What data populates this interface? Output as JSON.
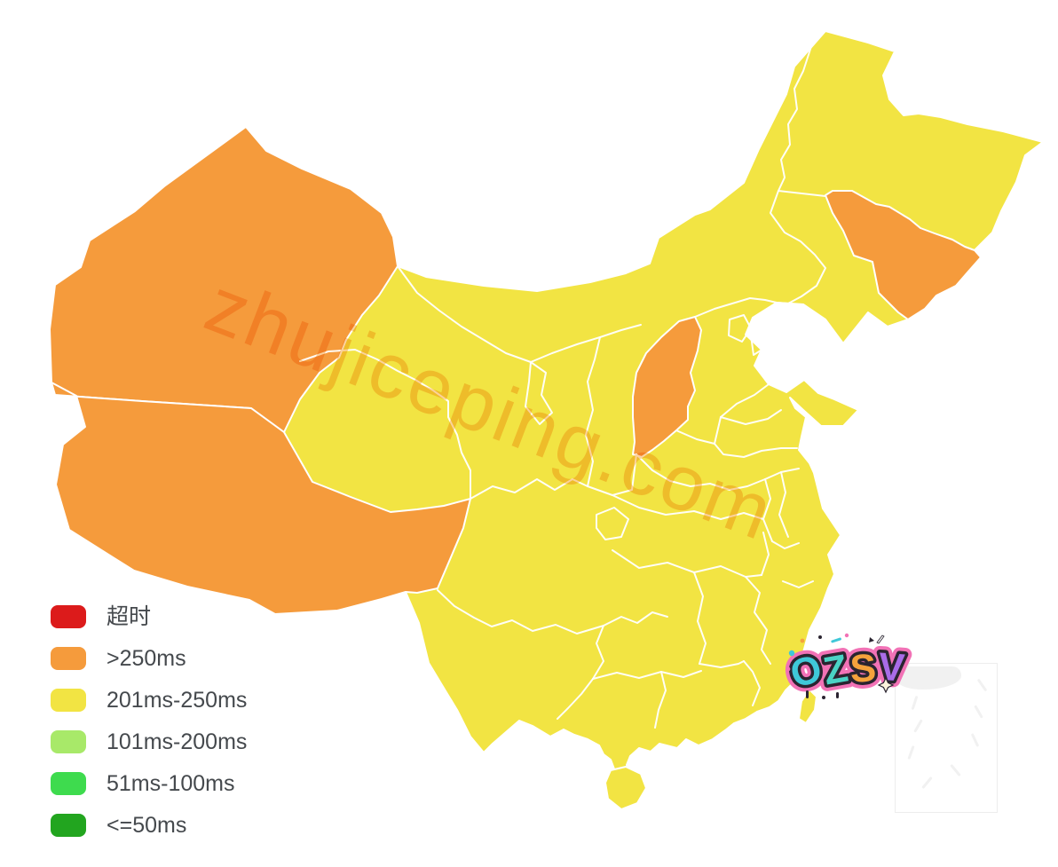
{
  "page": {
    "background": "#FFFFFF"
  },
  "legend": {
    "items": [
      {
        "label": "超时",
        "level": "timeout",
        "color": "#DC1B1B"
      },
      {
        "label": ">250ms",
        "level": "gt250",
        "color": "#F59B3C"
      },
      {
        "label": "201ms-250ms",
        "level": "r201_250",
        "color": "#F2E443"
      },
      {
        "label": "101ms-200ms",
        "level": "r101_200",
        "color": "#A8E969"
      },
      {
        "label": "51ms-100ms",
        "level": "r51_100",
        "color": "#3EDB4E"
      },
      {
        "label": "<=50ms",
        "level": "le50",
        "color": "#22A51F"
      }
    ]
  },
  "map": {
    "border_color": "#FFFFFF",
    "provinces": [
      {
        "id": "mainland",
        "level": "r201_250"
      },
      {
        "id": "xinjiang",
        "level": "gt250"
      },
      {
        "id": "xizang",
        "level": "gt250"
      },
      {
        "id": "shanxi",
        "level": "gt250"
      },
      {
        "id": "jilin",
        "level": "gt250"
      },
      {
        "id": "taiwan",
        "level": "r201_250"
      },
      {
        "id": "hainan",
        "level": "r201_250"
      }
    ]
  },
  "watermark": {
    "text": "zhujiceping.com",
    "color": "rgba(246,150,28,0.42)"
  },
  "badge": {
    "text": "OZSV",
    "outline_color": "#2A2430",
    "glow_color": "#F272B6",
    "letters": [
      {
        "char": "O",
        "color": "#3FC8D8"
      },
      {
        "char": "Z",
        "color": "#4AD3C5"
      },
      {
        "char": "S",
        "color": "#F5A23C"
      },
      {
        "char": "V",
        "color": "#A96CE8"
      }
    ]
  }
}
